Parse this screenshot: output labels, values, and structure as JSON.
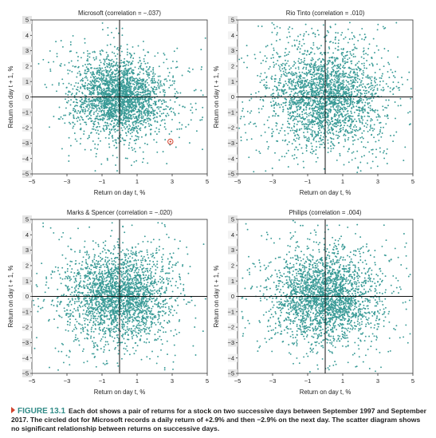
{
  "chart_data": [
    {
      "type": "scatter",
      "title": "Microsoft (correlation = −.037)",
      "xlabel": "Return on day t, %",
      "ylabel": "Return on day t + 1, %",
      "xlim": [
        -5,
        5
      ],
      "ylim": [
        -5,
        5
      ],
      "xticks": [
        "−5",
        "−3",
        "−1",
        "1",
        "3",
        "5"
      ],
      "yticks": [
        "5",
        "4",
        "3",
        "2",
        "1",
        "0",
        "−1",
        "−2",
        "−3",
        "−4",
        "−5"
      ],
      "correlation": -0.037,
      "spread": 1.15,
      "highlight": {
        "x": 2.9,
        "y": -2.9
      },
      "point_color": "#3a9b97"
    },
    {
      "type": "scatter",
      "title": "Rio Tinto (correlation = .010)",
      "xlabel": "Return on day t, %",
      "ylabel": "Return on day t + 1, %",
      "xlim": [
        -5,
        5
      ],
      "ylim": [
        -5,
        5
      ],
      "xticks": [
        "−5",
        "−3",
        "−1",
        "1",
        "3",
        "5"
      ],
      "yticks": [
        "5",
        "4",
        "3",
        "2",
        "1",
        "0",
        "−1",
        "−2",
        "−3",
        "−4",
        "−5"
      ],
      "correlation": 0.01,
      "spread": 1.55,
      "point_color": "#3a9b97"
    },
    {
      "type": "scatter",
      "title": "Marks & Spencer (correlation = −.020)",
      "xlabel": "Return on day t, %",
      "ylabel": "Return on day t + 1, %",
      "xlim": [
        -5,
        5
      ],
      "ylim": [
        -5,
        5
      ],
      "xticks": [
        "−5",
        "−3",
        "−1",
        "1",
        "3",
        "5"
      ],
      "yticks": [
        "5",
        "4",
        "3",
        "2",
        "1",
        "0",
        "−1",
        "−2",
        "−3",
        "−4",
        "−5"
      ],
      "correlation": -0.02,
      "spread": 1.35,
      "point_color": "#3a9b97"
    },
    {
      "type": "scatter",
      "title": "Philips (correlation = .004)",
      "xlabel": "Return on day t, %",
      "ylabel": "Return on day t + 1, %",
      "xlim": [
        -5,
        5
      ],
      "ylim": [
        -5,
        5
      ],
      "xticks": [
        "−5",
        "−3",
        "−1",
        "1",
        "3",
        "5"
      ],
      "yticks": [
        "5",
        "4",
        "3",
        "2",
        "1",
        "0",
        "−1",
        "−2",
        "−3",
        "−4",
        "−5"
      ],
      "correlation": 0.004,
      "spread": 1.4,
      "point_color": "#3a9b97"
    }
  ],
  "caption": {
    "label": "FIGURE 13.1",
    "text": "Each dot shows a pair of returns for a stock on two successive days between September 1997 and September 2017. The circled dot for Microsoft records a daily return of +2.9% and then −2.9% on the next day. The scatter diagram shows no significant relationship between returns on successive days."
  },
  "colors": {
    "points": "#3a9b97",
    "highlight": "#d2432d",
    "caption_label": "#2f8a86"
  }
}
